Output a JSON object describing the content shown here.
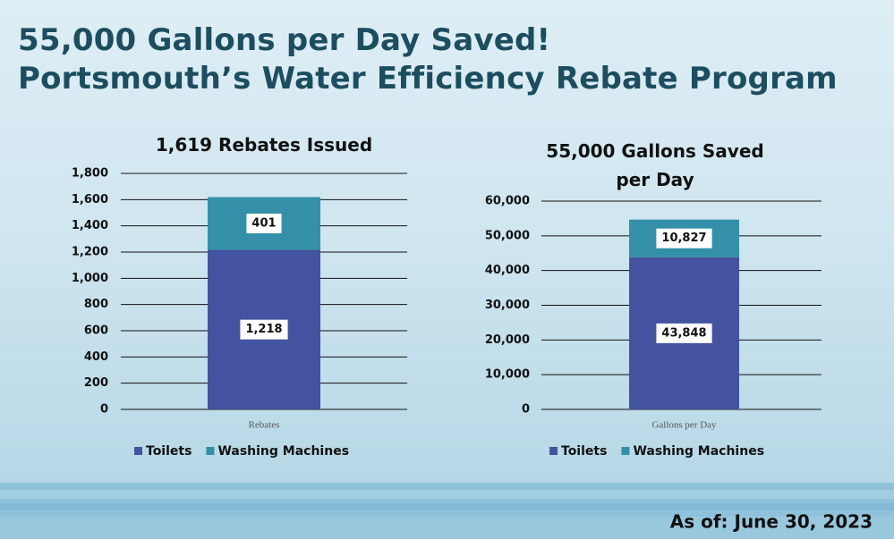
{
  "header": {
    "title_line1": "55,000 Gallons per Day Saved!",
    "title_line2": "Portsmouth’s Water Efficiency Rebate Program"
  },
  "footer": "As of: June 30, 2023",
  "chart_data": [
    {
      "type": "bar",
      "stacked": true,
      "title": "1,619 Rebates Issued",
      "categories": [
        "Rebates"
      ],
      "series": [
        {
          "name": "Toilets",
          "color": "#4453a0",
          "values": [
            1218
          ],
          "value_labels": [
            "1,218"
          ]
        },
        {
          "name": "Washing Machines",
          "color": "#3490a8",
          "values": [
            401
          ]
        }
      ],
      "ylim": [
        0,
        1800
      ],
      "yticks": [
        0,
        200,
        400,
        600,
        800,
        {
          "value": 1000,
          "label": "1,000"
        },
        {
          "value": 1200,
          "label": "1,200"
        },
        {
          "value": 1400,
          "label": "1,400"
        },
        {
          "value": 1600,
          "label": "1,600"
        },
        {
          "value": 1800,
          "label": "1,800"
        }
      ],
      "grid": true,
      "legend": "bottom"
    },
    {
      "type": "bar",
      "stacked": true,
      "title": "55,000 Gallons Saved per Day",
      "categories": [
        "Gallons per Day"
      ],
      "series": [
        {
          "name": "Toilets",
          "color": "#4453a0",
          "values": [
            43848
          ],
          "value_labels": [
            "43,848"
          ]
        },
        {
          "name": "Washing Machines",
          "color": "#3490a8",
          "values": [
            10827
          ],
          "value_labels": [
            "10,827"
          ]
        }
      ],
      "ylim": [
        0,
        60000
      ],
      "yticks": [
        0,
        {
          "value": 10000,
          "label": "10,000"
        },
        {
          "value": 20000,
          "label": "20,000"
        },
        {
          "value": 30000,
          "label": "30,000"
        },
        {
          "value": 40000,
          "label": "40,000"
        },
        {
          "value": 50000,
          "label": "50,000"
        },
        {
          "value": 60000,
          "label": "60,000"
        }
      ],
      "grid": true,
      "legend": "bottom"
    }
  ]
}
